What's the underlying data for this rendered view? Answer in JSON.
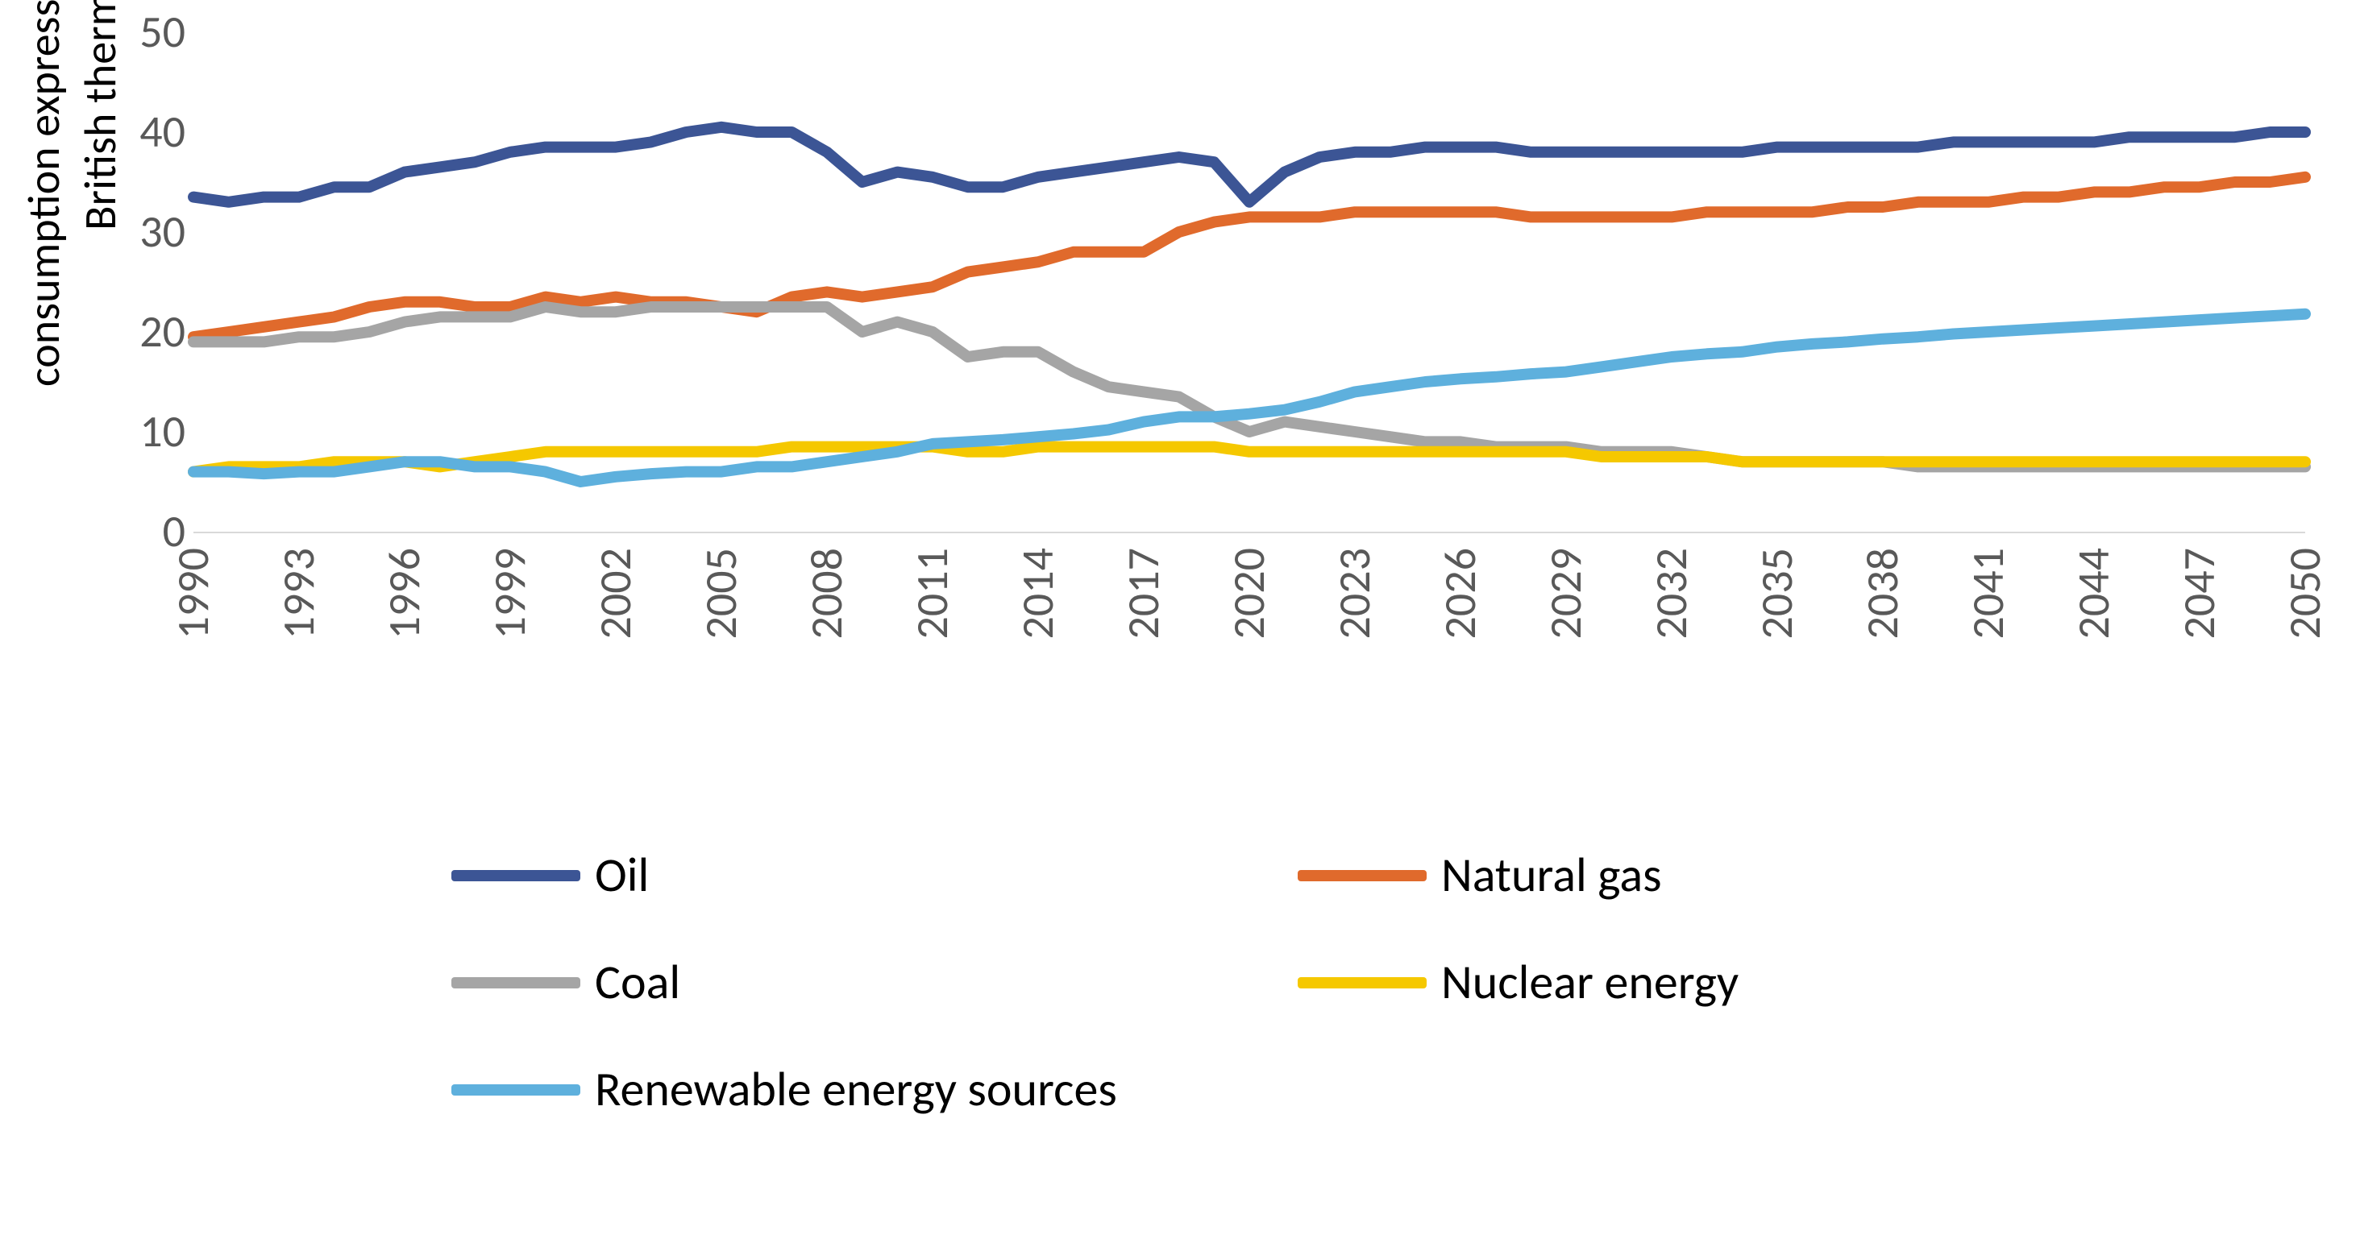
{
  "chart": {
    "type": "line",
    "background_color": "#ffffff",
    "grid_color": "#d9d9d9",
    "tick_color": "#595959",
    "line_width": 14,
    "tick_fontsize": 56,
    "legend_fontsize": 60,
    "y_axis_label": "consumption expressed in quadrillion\nBritish thermal units",
    "y_axis_label_fontsize": 56,
    "ylim": [
      0,
      50
    ],
    "ytick_step": 10,
    "yticks": [
      0,
      10,
      20,
      30,
      40,
      50
    ],
    "x_categories": [
      "1990",
      "1991",
      "1992",
      "1993",
      "1994",
      "1995",
      "1996",
      "1997",
      "1998",
      "1999",
      "2000",
      "2001",
      "2002",
      "2003",
      "2004",
      "2005",
      "2006",
      "2007",
      "2008",
      "2009",
      "2010",
      "2011",
      "2012",
      "2013",
      "2014",
      "2015",
      "2016",
      "2017",
      "2018",
      "2019",
      "2020",
      "2021",
      "2022",
      "2023",
      "2024",
      "2025",
      "2026",
      "2027",
      "2028",
      "2029",
      "2030",
      "2031",
      "2032",
      "2033",
      "2034",
      "2035",
      "2036",
      "2037",
      "2038",
      "2039",
      "2040",
      "2041",
      "2042",
      "2043",
      "2044",
      "2045",
      "2046",
      "2047",
      "2048",
      "2049",
      "2050"
    ],
    "x_tick_labels": [
      "1990",
      "1993",
      "1996",
      "1999",
      "2002",
      "2005",
      "2008",
      "2011",
      "2014",
      "2017",
      "2020",
      "2023",
      "2026",
      "2029",
      "2032",
      "2035",
      "2038",
      "2041",
      "2044",
      "2047",
      "2050"
    ],
    "x_tick_step": 3,
    "series": [
      {
        "name": "Oil",
        "color": "#3c5595",
        "values": [
          33.5,
          33.0,
          33.5,
          33.5,
          34.5,
          34.5,
          36.0,
          36.5,
          37.0,
          38.0,
          38.5,
          38.5,
          38.5,
          39.0,
          40.0,
          40.5,
          40.0,
          40.0,
          38.0,
          35.0,
          36.0,
          35.5,
          34.5,
          34.5,
          35.5,
          36.0,
          36.5,
          37.0,
          37.5,
          37.0,
          33.0,
          36.0,
          37.5,
          38.0,
          38.0,
          38.5,
          38.5,
          38.5,
          38.0,
          38.0,
          38.0,
          38.0,
          38.0,
          38.0,
          38.0,
          38.5,
          38.5,
          38.5,
          38.5,
          38.5,
          39.0,
          39.0,
          39.0,
          39.0,
          39.0,
          39.5,
          39.5,
          39.5,
          39.5,
          40.0,
          40.0
        ]
      },
      {
        "name": "Natural gas",
        "color": "#e06a2c",
        "values": [
          19.5,
          20.0,
          20.5,
          21.0,
          21.5,
          22.5,
          23.0,
          23.0,
          22.5,
          22.5,
          23.5,
          23.0,
          23.5,
          23.0,
          23.0,
          22.5,
          22.0,
          23.5,
          24.0,
          23.5,
          24.0,
          24.5,
          26.0,
          26.5,
          27.0,
          28.0,
          28.0,
          28.0,
          30.0,
          31.0,
          31.5,
          31.5,
          31.5,
          32.0,
          32.0,
          32.0,
          32.0,
          32.0,
          31.5,
          31.5,
          31.5,
          31.5,
          31.5,
          32.0,
          32.0,
          32.0,
          32.0,
          32.5,
          32.5,
          33.0,
          33.0,
          33.0,
          33.5,
          33.5,
          34.0,
          34.0,
          34.5,
          34.5,
          35.0,
          35.0,
          35.5
        ]
      },
      {
        "name": "Coal",
        "color": "#a5a5a5",
        "values": [
          19.0,
          19.0,
          19.0,
          19.5,
          19.5,
          20.0,
          21.0,
          21.5,
          21.5,
          21.5,
          22.5,
          22.0,
          22.0,
          22.5,
          22.5,
          22.5,
          22.5,
          22.5,
          22.5,
          20.0,
          21.0,
          20.0,
          17.5,
          18.0,
          18.0,
          16.0,
          14.5,
          14.0,
          13.5,
          11.5,
          10.0,
          11.0,
          10.5,
          10.0,
          9.5,
          9.0,
          9.0,
          8.5,
          8.5,
          8.5,
          8.0,
          8.0,
          8.0,
          7.5,
          7.0,
          7.0,
          7.0,
          7.0,
          7.0,
          6.5,
          6.5,
          6.5,
          6.5,
          6.5,
          6.5,
          6.5,
          6.5,
          6.5,
          6.5,
          6.5,
          6.5
        ]
      },
      {
        "name": "Nuclear energy",
        "color": "#f5c800",
        "values": [
          6.0,
          6.5,
          6.5,
          6.5,
          7.0,
          7.0,
          7.0,
          6.5,
          7.0,
          7.5,
          8.0,
          8.0,
          8.0,
          8.0,
          8.0,
          8.0,
          8.0,
          8.5,
          8.5,
          8.5,
          8.5,
          8.5,
          8.0,
          8.0,
          8.5,
          8.5,
          8.5,
          8.5,
          8.5,
          8.5,
          8.0,
          8.0,
          8.0,
          8.0,
          8.0,
          8.0,
          8.0,
          8.0,
          8.0,
          8.0,
          7.5,
          7.5,
          7.5,
          7.5,
          7.0,
          7.0,
          7.0,
          7.0,
          7.0,
          7.0,
          7.0,
          7.0,
          7.0,
          7.0,
          7.0,
          7.0,
          7.0,
          7.0,
          7.0,
          7.0,
          7.0
        ]
      },
      {
        "name": "Renewable energy sources",
        "color": "#5eb0dd",
        "values": [
          6.0,
          6.0,
          5.8,
          6.0,
          6.0,
          6.5,
          7.0,
          7.0,
          6.5,
          6.5,
          6.0,
          5.0,
          5.5,
          5.8,
          6.0,
          6.0,
          6.5,
          6.5,
          7.0,
          7.5,
          8.0,
          8.8,
          9.0,
          9.2,
          9.5,
          9.8,
          10.2,
          11.0,
          11.5,
          11.5,
          11.8,
          12.2,
          13.0,
          14.0,
          14.5,
          15.0,
          15.3,
          15.5,
          15.8,
          16.0,
          16.5,
          17.0,
          17.5,
          17.8,
          18.0,
          18.5,
          18.8,
          19.0,
          19.3,
          19.5,
          19.8,
          20.0,
          20.2,
          20.4,
          20.6,
          20.8,
          21.0,
          21.2,
          21.4,
          21.6,
          21.8
        ]
      }
    ],
    "legend": {
      "position": "bottom",
      "items": [
        {
          "label": "Oil",
          "color": "#3c5595"
        },
        {
          "label": "Natural gas",
          "color": "#e06a2c"
        },
        {
          "label": "Coal",
          "color": "#a5a5a5"
        },
        {
          "label": "Nuclear energy",
          "color": "#f5c800"
        },
        {
          "label": "Renewable energy sources",
          "color": "#5eb0dd"
        }
      ]
    }
  }
}
